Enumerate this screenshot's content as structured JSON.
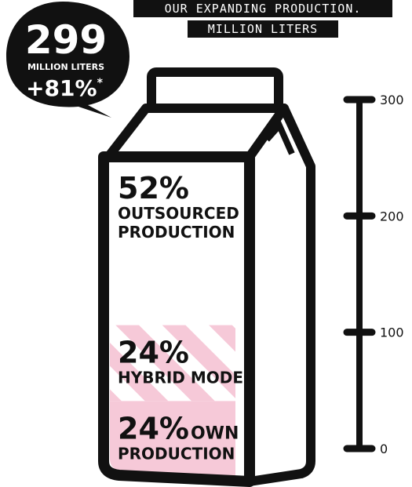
{
  "title_lines": [
    "OUR EXPANDING PRODUCTION.",
    "MILLION LITERS"
  ],
  "callout": {
    "value": "299",
    "unit": "MILLION LITERS",
    "change": "+81%",
    "footnote_mark": "*"
  },
  "colors": {
    "ink": "#111111",
    "pink": "#f6c9d8",
    "stripe": "#ffffff",
    "carton": "#ffffff"
  },
  "chart_data": {
    "type": "bar",
    "stacked": true,
    "total": 299,
    "ylim": [
      0,
      300
    ],
    "ticks": [
      0,
      100,
      200,
      300
    ],
    "segments": [
      {
        "percent": 24,
        "pct_label": "24%",
        "name_inline": "OWN",
        "name_lines": [
          "PRODUCTION"
        ],
        "pattern": "solid"
      },
      {
        "percent": 24,
        "pct_label": "24%",
        "name_inline": "",
        "name_lines": [
          "HYBRID MODEL"
        ],
        "pattern": "striped"
      },
      {
        "percent": 52,
        "pct_label": "52%",
        "name_inline": "",
        "name_lines": [
          "OUTSOURCED",
          "PRODUCTION"
        ],
        "pattern": "none"
      }
    ]
  }
}
